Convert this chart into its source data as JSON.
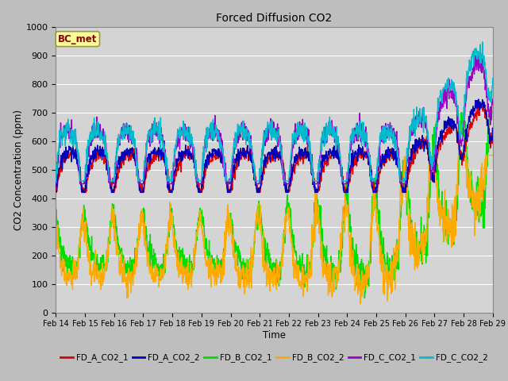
{
  "title": "Forced Diffusion CO2",
  "xlabel": "Time",
  "ylabel": "CO2 Concentration (ppm)",
  "ylim": [
    0,
    1000
  ],
  "annotation_text": "BC_met",
  "x_tick_labels": [
    "Feb 14",
    "Feb 15",
    "Feb 16",
    "Feb 17",
    "Feb 18",
    "Feb 19",
    "Feb 20",
    "Feb 21",
    "Feb 22",
    "Feb 23",
    "Feb 24",
    "Feb 25",
    "Feb 26",
    "Feb 27",
    "Feb 28",
    "Feb 29"
  ],
  "series": [
    {
      "label": "FD_A_CO2_1",
      "color": "#dd0000"
    },
    {
      "label": "FD_A_CO2_2",
      "color": "#0000bb"
    },
    {
      "label": "FD_B_CO2_1",
      "color": "#00dd00"
    },
    {
      "label": "FD_B_CO2_2",
      "color": "#ffaa00"
    },
    {
      "label": "FD_C_CO2_1",
      "color": "#9900cc"
    },
    {
      "label": "FD_C_CO2_2",
      "color": "#00bbcc"
    }
  ],
  "fig_bg": "#bebebe",
  "plot_bg": "#d4d4d4",
  "n_points": 1440
}
